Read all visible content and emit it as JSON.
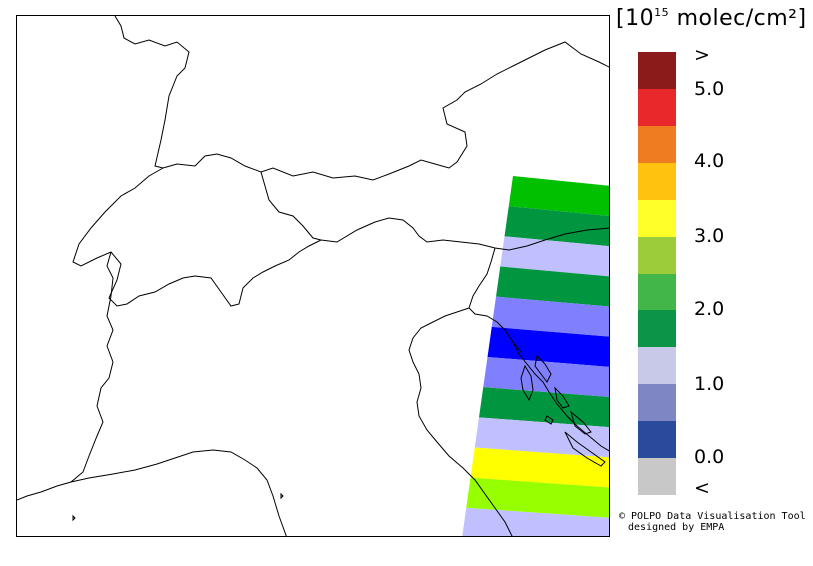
{
  "unit": {
    "prefix": "[10",
    "exponent": "15",
    "suffix": " molec/cm²]"
  },
  "legend": {
    "colors": [
      "#8b1a1a",
      "#e8282a",
      "#f07c22",
      "#ffc20e",
      "#ffff2a",
      "#9ccc3a",
      "#43b649",
      "#0c9448",
      "#c8c8e8",
      "#7f86c4",
      "#2a4b9c",
      "#c8c8c8"
    ],
    "labels": [
      ">",
      "5.0",
      "4.0",
      "3.0",
      "2.0",
      "1.0",
      "0.0",
      "<"
    ]
  },
  "credit": {
    "line1": "© POLPO Data Visualisation Tool",
    "line2": "designed by EMPA"
  },
  "map": {
    "swath_colors": [
      "#00c000",
      "#009640",
      "#c0c0ff",
      "#009640",
      "#8080ff",
      "#0000ff",
      "#8080ff",
      "#009640",
      "#c0c0ff",
      "#ffff00",
      "#96ff00",
      "#c0c0ff"
    ]
  }
}
